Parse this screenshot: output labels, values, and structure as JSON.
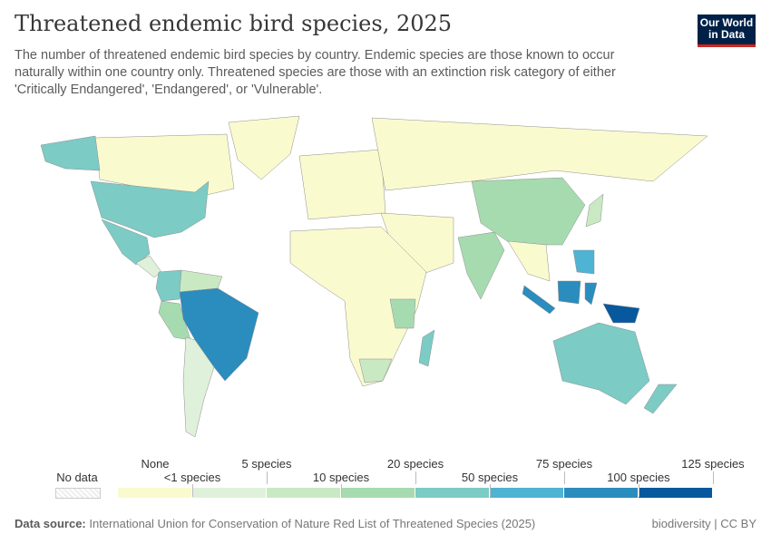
{
  "header": {
    "title": "Threatened endemic bird species, 2025",
    "subtitle": "The number of threatened endemic bird species by country. Endemic species are those known to occur naturally within one country only. Threatened species are those with an extinction risk category of either 'Critically Endangered', 'Endangered', or 'Vulnerable'.",
    "logo": "Our World in Data"
  },
  "legend": {
    "no_data": "No data",
    "colors": [
      "#fafacf",
      "#dff1da",
      "#c9e9c3",
      "#a6dbb0",
      "#7ccbc5",
      "#4fb3d3",
      "#2b8cbe",
      "#08589e"
    ],
    "upper_labels": [
      "None",
      "5 species",
      "20 species",
      "75 species",
      "125 species"
    ],
    "lower_labels": [
      "<1 species",
      "10 species",
      "50 species",
      "100 species"
    ]
  },
  "map_fills": {
    "canada": 0,
    "alaska": 4,
    "greenland": 0,
    "usa": 4,
    "mexico": 4,
    "central-america": 1,
    "colombia-ecuador": 4,
    "peru": 3,
    "venezuela-guianas": 2,
    "brazil": 6,
    "southern-cone": 1,
    "europe": 0,
    "russia": 0,
    "africa": 0,
    "east-africa": 3,
    "southern-africa": 2,
    "madagascar": 4,
    "middle-east": 0,
    "india": 3,
    "china": 3,
    "southeast-asia": 0,
    "sumatra-java": 6,
    "borneo": 6,
    "sulawesi": 6,
    "philippines": 5,
    "new-guinea": 7,
    "japan": 2,
    "australia": 4,
    "new-zealand": 4
  },
  "footer": {
    "source_label": "Data source:",
    "source": "International Union for Conservation of Nature Red List of Threatened Species (2025)",
    "license": "biodiversity | CC BY"
  }
}
